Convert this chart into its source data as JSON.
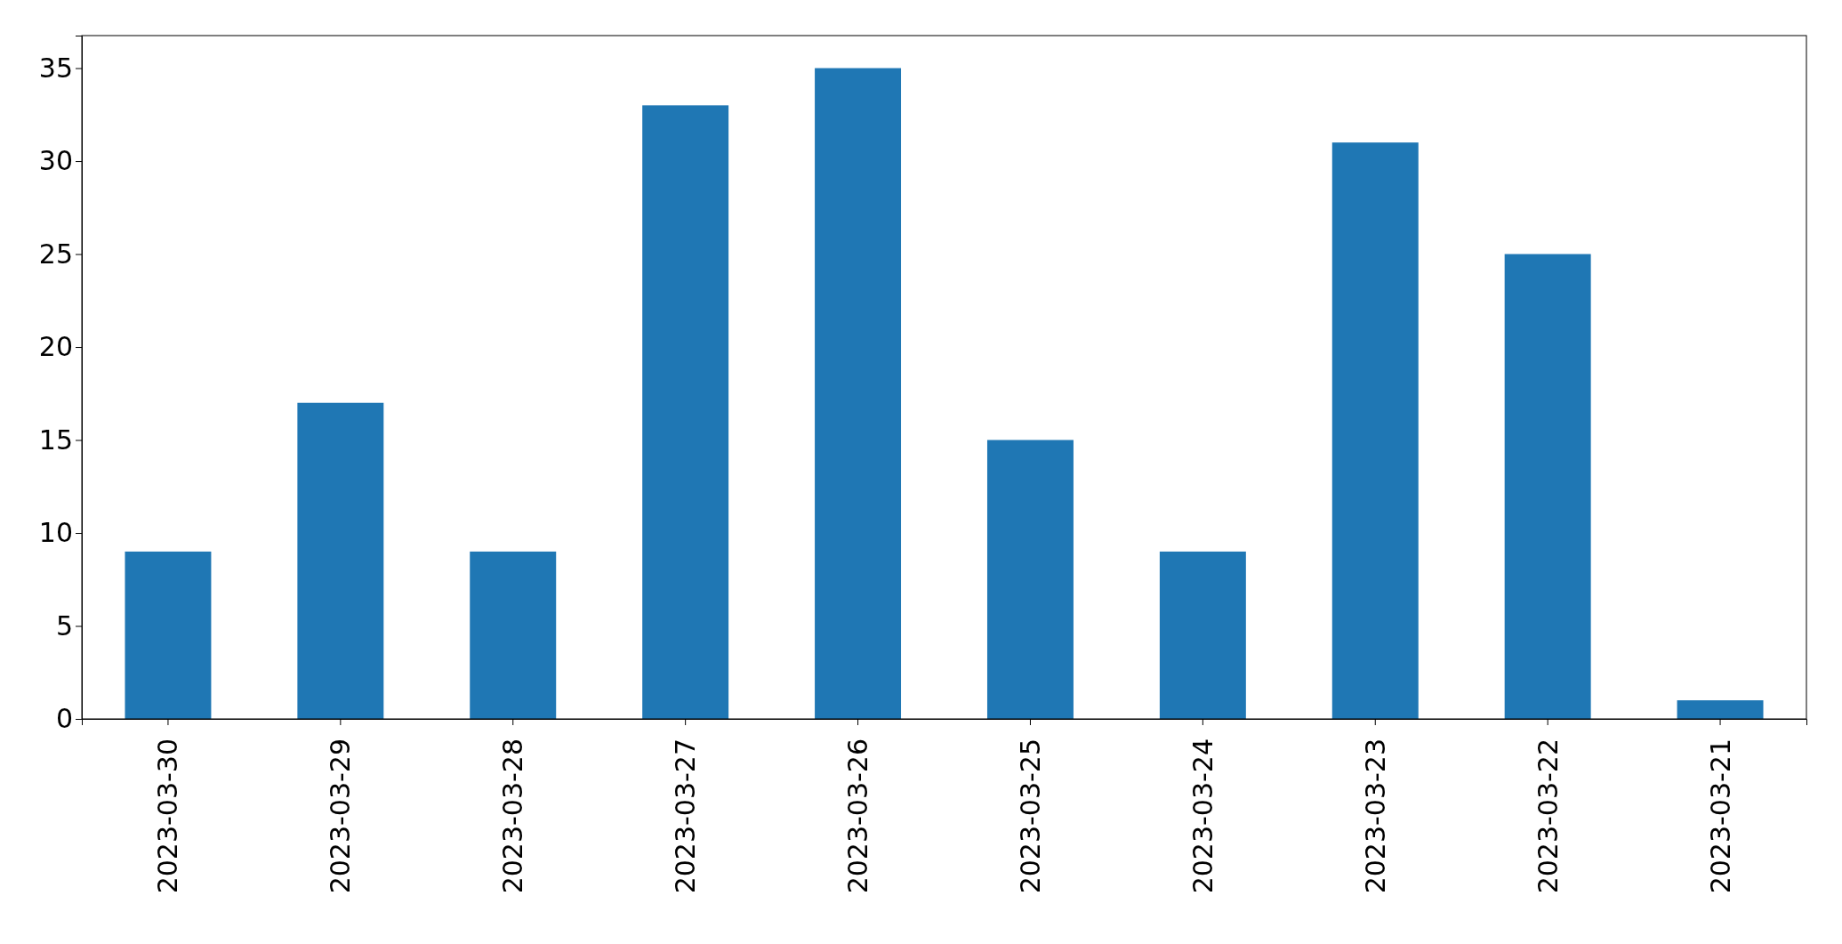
{
  "chart_data": {
    "type": "bar",
    "categories": [
      "2023-03-30",
      "2023-03-29",
      "2023-03-28",
      "2023-03-27",
      "2023-03-26",
      "2023-03-25",
      "2023-03-24",
      "2023-03-23",
      "2023-03-22",
      "2023-03-21"
    ],
    "values": [
      9,
      17,
      9,
      33,
      35,
      15,
      9,
      31,
      25,
      1
    ],
    "color": "#1f77b4",
    "ylim": [
      0,
      36.75
    ],
    "yticks": [
      0,
      5,
      10,
      15,
      20,
      25,
      30,
      35
    ],
    "grid": false
  }
}
